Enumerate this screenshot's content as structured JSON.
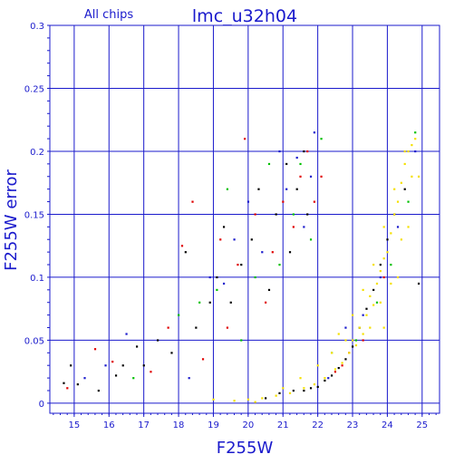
{
  "chart_data": {
    "type": "scatter",
    "title": "lmc_u32h04",
    "subtitle": "All chips",
    "xlabel": "F255W",
    "ylabel": "F255W error",
    "xlim": [
      14.3,
      25.5
    ],
    "ylim": [
      -0.008,
      0.3
    ],
    "x_ticks": [
      15,
      16,
      17,
      18,
      19,
      20,
      21,
      22,
      23,
      24,
      25
    ],
    "y_ticks": [
      0,
      0.05,
      0.1,
      0.15,
      0.2,
      0.25,
      0.3
    ],
    "y_tick_labels": [
      "0",
      "0.05",
      "0.1",
      "0.15",
      "0.2",
      "0.25",
      "0.3"
    ],
    "grid": true,
    "series": [
      {
        "color": "#000000",
        "points": [
          [
            14.7,
            0.016
          ],
          [
            14.9,
            0.03
          ],
          [
            15.1,
            0.015
          ],
          [
            15.7,
            0.01
          ],
          [
            16.2,
            0.022
          ],
          [
            16.4,
            0.03
          ],
          [
            16.8,
            0.045
          ],
          [
            17.0,
            0.03
          ],
          [
            17.4,
            0.05
          ],
          [
            17.8,
            0.04
          ],
          [
            18.2,
            0.12
          ],
          [
            18.5,
            0.06
          ],
          [
            18.9,
            0.08
          ],
          [
            19.1,
            0.1
          ],
          [
            19.3,
            0.14
          ],
          [
            19.5,
            0.08
          ],
          [
            19.8,
            0.11
          ],
          [
            20.1,
            0.13
          ],
          [
            20.3,
            0.17
          ],
          [
            20.6,
            0.09
          ],
          [
            20.8,
            0.15
          ],
          [
            21.1,
            0.19
          ],
          [
            21.2,
            0.12
          ],
          [
            21.4,
            0.17
          ],
          [
            21.6,
            0.2
          ],
          [
            21.7,
            0.15
          ],
          [
            20.5,
            0.004
          ],
          [
            20.9,
            0.008
          ],
          [
            21.3,
            0.01
          ],
          [
            21.6,
            0.01
          ],
          [
            21.8,
            0.012
          ],
          [
            22.0,
            0.013
          ],
          [
            22.2,
            0.018
          ],
          [
            22.4,
            0.022
          ],
          [
            22.6,
            0.028
          ],
          [
            22.8,
            0.035
          ],
          [
            23.0,
            0.045
          ],
          [
            23.2,
            0.06
          ],
          [
            23.4,
            0.075
          ],
          [
            23.6,
            0.09
          ],
          [
            23.8,
            0.11
          ],
          [
            24.0,
            0.13
          ],
          [
            24.2,
            0.15
          ],
          [
            24.5,
            0.17
          ],
          [
            24.9,
            0.095
          ]
        ]
      },
      {
        "color": "#e00000",
        "points": [
          [
            14.8,
            0.012
          ],
          [
            15.6,
            0.043
          ],
          [
            16.1,
            0.033
          ],
          [
            17.2,
            0.025
          ],
          [
            17.7,
            0.06
          ],
          [
            18.1,
            0.125
          ],
          [
            18.4,
            0.16
          ],
          [
            18.7,
            0.035
          ],
          [
            19.2,
            0.13
          ],
          [
            19.4,
            0.06
          ],
          [
            19.7,
            0.11
          ],
          [
            19.9,
            0.21
          ],
          [
            20.2,
            0.15
          ],
          [
            20.5,
            0.08
          ],
          [
            20.7,
            0.12
          ],
          [
            21.0,
            0.16
          ],
          [
            21.3,
            0.14
          ],
          [
            21.5,
            0.18
          ],
          [
            21.7,
            0.2
          ],
          [
            21.9,
            0.16
          ],
          [
            22.1,
            0.18
          ],
          [
            22.5,
            0.025
          ],
          [
            22.7,
            0.03
          ],
          [
            22.9,
            0.04
          ],
          [
            23.3,
            0.05
          ],
          [
            23.9,
            0.1
          ]
        ]
      },
      {
        "color": "#1a1acc",
        "points": [
          [
            15.3,
            0.02
          ],
          [
            15.9,
            0.03
          ],
          [
            16.5,
            0.055
          ],
          [
            18.3,
            0.02
          ],
          [
            18.9,
            0.1
          ],
          [
            19.3,
            0.095
          ],
          [
            19.6,
            0.13
          ],
          [
            20.0,
            0.16
          ],
          [
            20.4,
            0.12
          ],
          [
            20.9,
            0.2
          ],
          [
            21.1,
            0.17
          ],
          [
            21.4,
            0.195
          ],
          [
            21.6,
            0.14
          ],
          [
            21.8,
            0.18
          ],
          [
            21.9,
            0.215
          ],
          [
            22.3,
            0.02
          ],
          [
            22.8,
            0.06
          ],
          [
            23.3,
            0.07
          ],
          [
            23.8,
            0.1
          ],
          [
            24.3,
            0.14
          ],
          [
            24.8,
            0.2
          ]
        ]
      },
      {
        "color": "#00c000",
        "points": [
          [
            16.7,
            0.02
          ],
          [
            18.0,
            0.07
          ],
          [
            18.6,
            0.08
          ],
          [
            19.1,
            0.09
          ],
          [
            19.4,
            0.17
          ],
          [
            19.8,
            0.05
          ],
          [
            20.2,
            0.1
          ],
          [
            20.6,
            0.19
          ],
          [
            20.9,
            0.11
          ],
          [
            21.3,
            0.15
          ],
          [
            21.5,
            0.19
          ],
          [
            21.8,
            0.13
          ],
          [
            22.1,
            0.21
          ],
          [
            22.4,
            0.04
          ],
          [
            23.1,
            0.05
          ],
          [
            23.7,
            0.08
          ],
          [
            24.1,
            0.11
          ],
          [
            24.6,
            0.16
          ],
          [
            24.8,
            0.215
          ]
        ]
      },
      {
        "color": "#f5e000",
        "points": [
          [
            19.6,
            0.002
          ],
          [
            20.0,
            0.003
          ],
          [
            20.4,
            0.004
          ],
          [
            20.8,
            0.006
          ],
          [
            21.2,
            0.008
          ],
          [
            21.6,
            0.012
          ],
          [
            21.9,
            0.015
          ],
          [
            22.2,
            0.02
          ],
          [
            22.5,
            0.027
          ],
          [
            22.7,
            0.032
          ],
          [
            22.9,
            0.04
          ],
          [
            23.0,
            0.05
          ],
          [
            23.1,
            0.046
          ],
          [
            23.2,
            0.06
          ],
          [
            23.3,
            0.055
          ],
          [
            23.4,
            0.07
          ],
          [
            23.5,
            0.085
          ],
          [
            23.6,
            0.078
          ],
          [
            23.7,
            0.095
          ],
          [
            23.8,
            0.105
          ],
          [
            23.9,
            0.115
          ],
          [
            24.0,
            0.12
          ],
          [
            24.1,
            0.135
          ],
          [
            24.2,
            0.15
          ],
          [
            24.3,
            0.16
          ],
          [
            24.4,
            0.175
          ],
          [
            24.5,
            0.19
          ],
          [
            24.6,
            0.2
          ],
          [
            24.7,
            0.205
          ],
          [
            24.8,
            0.21
          ],
          [
            23.5,
            0.06
          ],
          [
            23.8,
            0.08
          ],
          [
            24.1,
            0.095
          ],
          [
            24.4,
            0.13
          ],
          [
            24.7,
            0.18
          ],
          [
            22.8,
            0.05
          ],
          [
            23.0,
            0.07
          ],
          [
            23.3,
            0.09
          ],
          [
            23.6,
            0.11
          ],
          [
            23.9,
            0.14
          ],
          [
            24.2,
            0.17
          ],
          [
            24.5,
            0.2
          ],
          [
            22.0,
            0.03
          ],
          [
            22.4,
            0.04
          ],
          [
            22.6,
            0.055
          ],
          [
            21.5,
            0.02
          ],
          [
            21.0,
            0.012
          ],
          [
            23.9,
            0.06
          ],
          [
            24.3,
            0.1
          ],
          [
            24.6,
            0.14
          ],
          [
            24.9,
            0.18
          ],
          [
            19.0,
            0.003
          ],
          [
            20.2,
            0.001
          ]
        ]
      }
    ]
  }
}
